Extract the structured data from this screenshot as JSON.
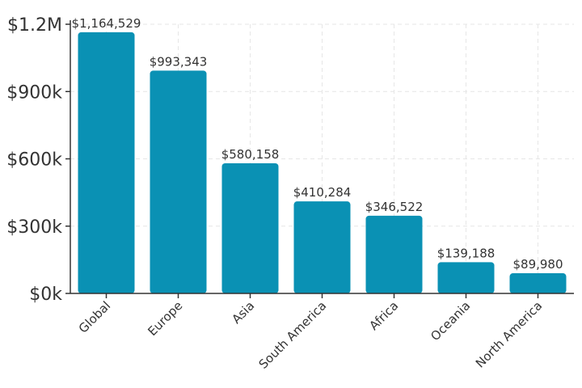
{
  "chart_data": {
    "type": "bar",
    "title": "",
    "xlabel": "",
    "ylabel": "",
    "categories": [
      "Global",
      "Europe",
      "Asia",
      "South America",
      "Africa",
      "Oceania",
      "North America"
    ],
    "values": [
      1164529,
      993343,
      580158,
      410284,
      346522,
      139188,
      89980
    ],
    "value_labels": [
      "$1,164,529",
      "$993,343",
      "$580,158",
      "$410,284",
      "$346,522",
      "$139,188",
      "$89,980"
    ],
    "ylim": [
      0,
      1200000
    ],
    "yticks": [
      0,
      300000,
      600000,
      900000,
      1200000
    ],
    "ytick_labels": [
      "$0k",
      "$300k",
      "$600k",
      "$900k",
      "$1.2M"
    ],
    "grid": true,
    "bar_color": "#0a91b4"
  }
}
